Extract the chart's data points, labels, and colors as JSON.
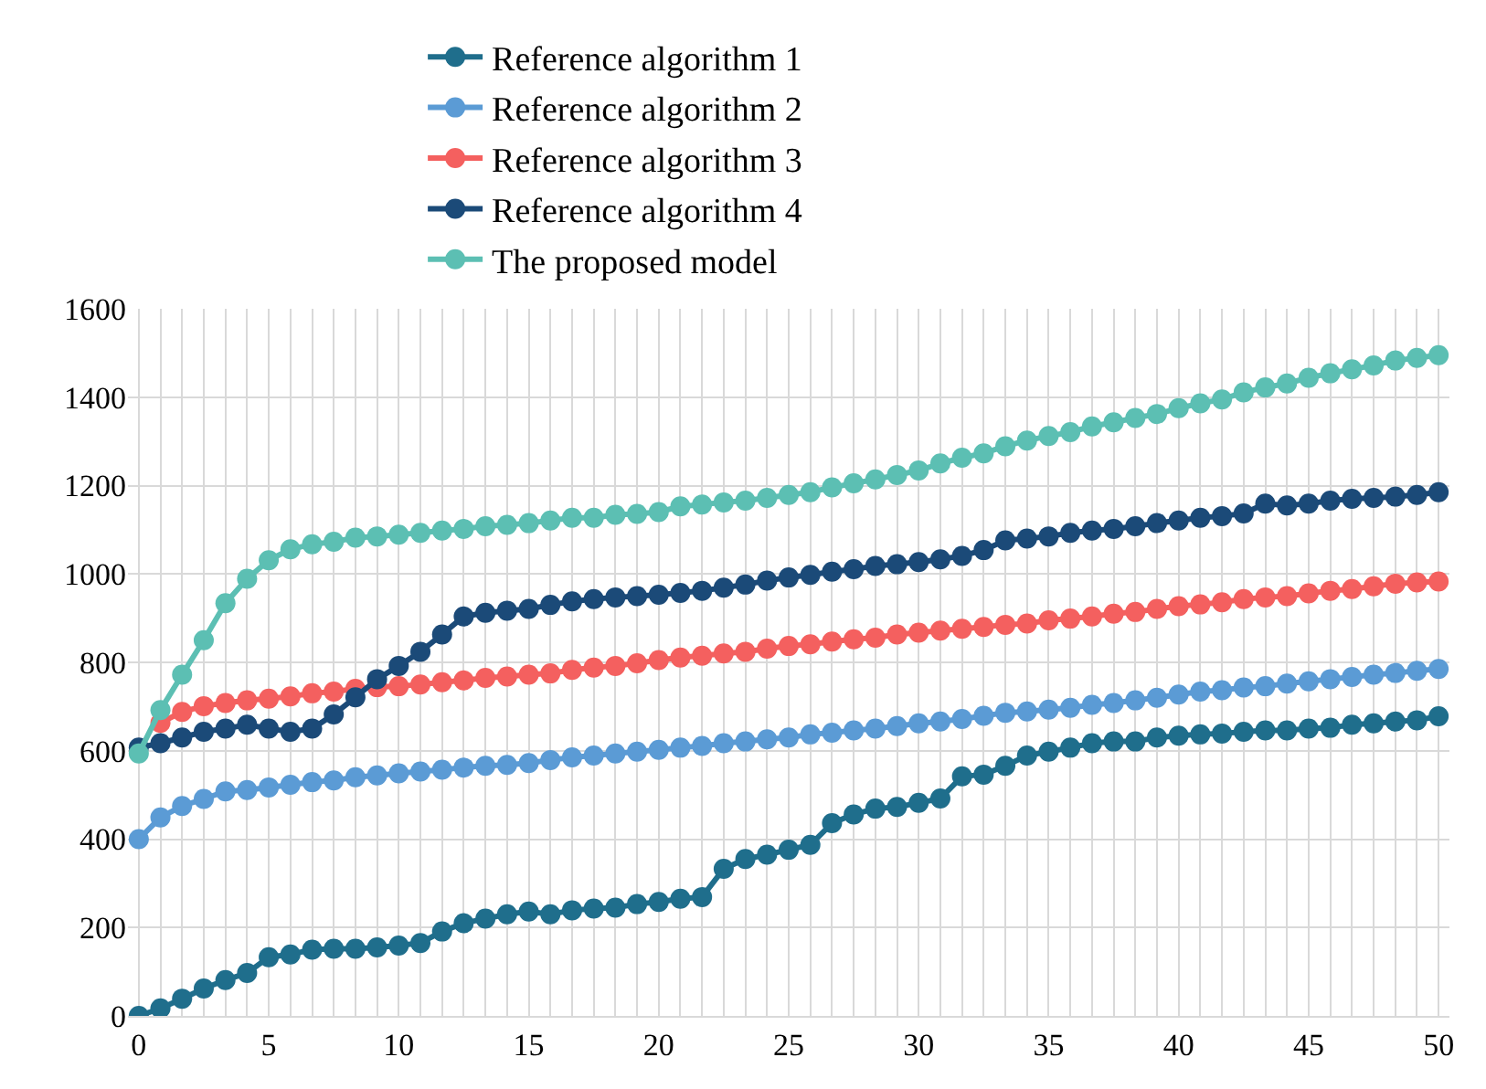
{
  "chart_data": {
    "type": "line",
    "categories": [
      "0",
      null,
      null,
      null,
      null,
      null,
      "5",
      null,
      null,
      null,
      null,
      null,
      "10",
      null,
      null,
      null,
      null,
      null,
      "15",
      null,
      null,
      null,
      null,
      null,
      "20",
      null,
      null,
      null,
      null,
      null,
      "25",
      null,
      null,
      null,
      null,
      null,
      "30",
      null,
      null,
      null,
      null,
      null,
      "35",
      null,
      null,
      null,
      null,
      null,
      "40",
      null,
      null,
      null,
      null,
      null,
      "45",
      null,
      null,
      null,
      null,
      null,
      "50"
    ],
    "series": [
      {
        "name": "Reference algorithm 1",
        "color": "#1f6e8c",
        "values": [
          0,
          17,
          39,
          62,
          81,
          97,
          133,
          139,
          150,
          152,
          152,
          155,
          159,
          165,
          191,
          210,
          220,
          230,
          236,
          230,
          239,
          243,
          245,
          253,
          258,
          265,
          269,
          333,
          355,
          365,
          376,
          387,
          436,
          456,
          469,
          473,
          482,
          492,
          542,
          546,
          566,
          589,
          598,
          607,
          617,
          621,
          621,
          630,
          634,
          637,
          639,
          643,
          646,
          646,
          650,
          652,
          659,
          662,
          666,
          669,
          678
        ]
      },
      {
        "name": "Reference algorithm 2",
        "color": "#5b9bd5",
        "values": [
          400,
          449,
          475,
          491,
          508,
          511,
          517,
          523,
          529,
          533,
          540,
          544,
          549,
          553,
          557,
          562,
          566,
          568,
          572,
          579,
          585,
          589,
          594,
          598,
          602,
          607,
          611,
          617,
          621,
          626,
          630,
          637,
          641,
          646,
          650,
          656,
          662,
          666,
          672,
          679,
          686,
          689,
          693,
          697,
          704,
          708,
          714,
          720,
          727,
          734,
          737,
          743,
          746,
          752,
          757,
          762,
          767,
          772,
          776,
          781,
          785
        ]
      },
      {
        "name": "Reference algorithm 3",
        "color": "#f4605f",
        "values": [
          null,
          663,
          688,
          701,
          708,
          714,
          718,
          723,
          730,
          734,
          740,
          744,
          746,
          750,
          755,
          759,
          765,
          768,
          772,
          775,
          783,
          788,
          792,
          798,
          805,
          811,
          815,
          820,
          824,
          831,
          837,
          841,
          847,
          852,
          856,
          863,
          867,
          872,
          876,
          880,
          885,
          888,
          895,
          899,
          904,
          910,
          914,
          921,
          927,
          931,
          936,
          943,
          947,
          950,
          956,
          962,
          966,
          972,
          978,
          981,
          983
        ]
      },
      {
        "name": "Reference algorithm 4",
        "color": "#1b4a78",
        "values": [
          607,
          617,
          630,
          643,
          650,
          659,
          650,
          643,
          650,
          682,
          721,
          762,
          792,
          824,
          863,
          904,
          912,
          917,
          921,
          930,
          938,
          943,
          947,
          950,
          953,
          957,
          962,
          969,
          976,
          985,
          992,
          998,
          1005,
          1011,
          1018,
          1022,
          1027,
          1033,
          1041,
          1054,
          1076,
          1080,
          1085,
          1093,
          1098,
          1102,
          1108,
          1115,
          1121,
          1127,
          1131,
          1137,
          1159,
          1155,
          1159,
          1166,
          1170,
          1172,
          1175,
          1179,
          1185
        ]
      },
      {
        "name": "The proposed model",
        "color": "#5cbfb3",
        "values": [
          594,
          692,
          772,
          850,
          934,
          989,
          1031,
          1056,
          1067,
          1073,
          1082,
          1085,
          1089,
          1093,
          1098,
          1102,
          1108,
          1111,
          1115,
          1121,
          1127,
          1127,
          1134,
          1136,
          1140,
          1153,
          1157,
          1162,
          1166,
          1172,
          1179,
          1185,
          1196,
          1205,
          1214,
          1224,
          1234,
          1250,
          1263,
          1273,
          1289,
          1302,
          1312,
          1321,
          1334,
          1343,
          1353,
          1362,
          1375,
          1386,
          1395,
          1411,
          1422,
          1431,
          1444,
          1454,
          1463,
          1472,
          1483,
          1489,
          1495
        ]
      }
    ],
    "ylim": [
      0,
      1600
    ],
    "yticks": [
      0,
      200,
      400,
      600,
      800,
      1000,
      1200,
      1400,
      1600
    ],
    "grid": true,
    "legend": "top",
    "marker": "circle",
    "line_style": "solid"
  }
}
